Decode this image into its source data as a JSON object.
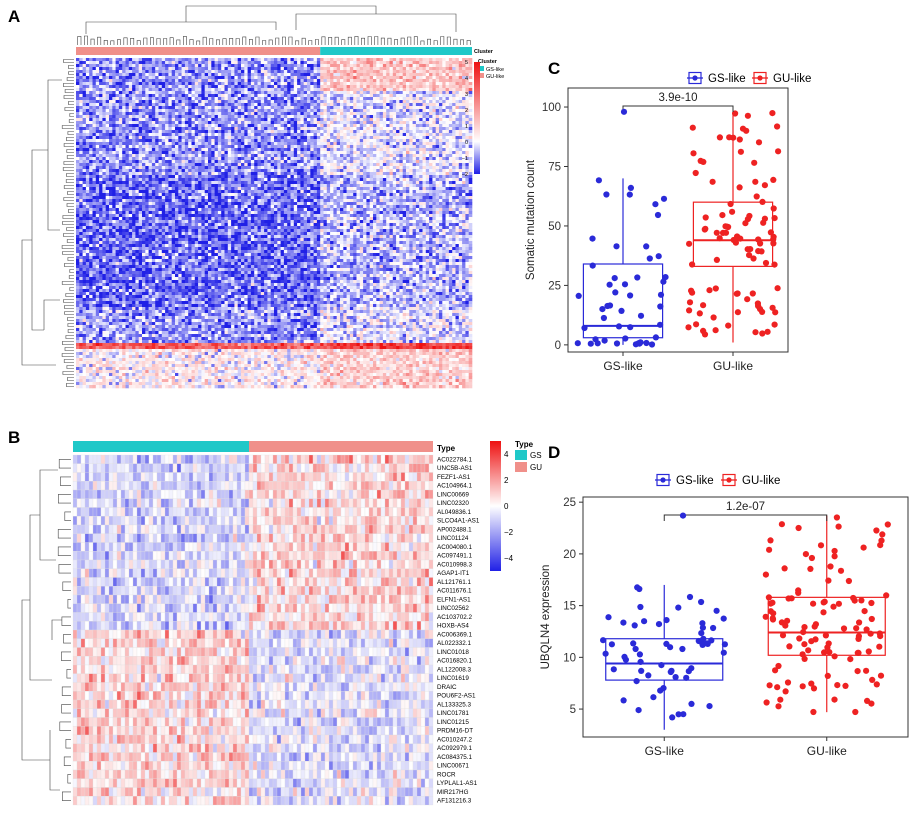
{
  "panels": {
    "A": "A",
    "B": "B",
    "C": "C",
    "D": "D"
  },
  "colors": {
    "gs": "#2a2ad8",
    "gu": "#ee2222",
    "gs_bar": "#1fc8c8",
    "gu_bar": "#f0908a",
    "heat_low": "#2020e6",
    "heat_mid": "#ffffff",
    "heat_high": "#ee1111"
  },
  "chart_data": [
    {
      "type": "heatmap",
      "panel": "A",
      "annotation_title": "Cluster",
      "legend_title": "Cluster",
      "groups": [
        "GS-like",
        "GU-like"
      ],
      "color_scale_ticks": [
        "5",
        "4",
        "3",
        "2",
        "1",
        "0",
        "−1",
        "−2"
      ],
      "color_range": [
        -2,
        5
      ]
    },
    {
      "type": "heatmap",
      "panel": "B",
      "annotation_title": "Type",
      "legend_title": "Type",
      "groups": [
        "GS",
        "GU"
      ],
      "color_scale_ticks": [
        "4",
        "2",
        "0",
        "−2",
        "−4"
      ],
      "color_range": [
        -5,
        5
      ],
      "rows": [
        "AC022784.1",
        "UNC5B-AS1",
        "FEZF1-AS1",
        "AC104964.1",
        "LINC00669",
        "LINC02320",
        "AL049836.1",
        "SLCO4A1-AS1",
        "AP002488.1",
        "LINC01124",
        "AC004080.1",
        "AC097491.1",
        "AC010998.3",
        "AGAP1-IT1",
        "AL121761.1",
        "AC011676.1",
        "ELFN1-AS1",
        "LINC02562",
        "AC103702.2",
        "HOXB-AS4",
        "AC006369.1",
        "AL022332.1",
        "LINC01018",
        "AC016820.1",
        "AL122008.3",
        "LINC01619",
        "DRAIC",
        "POU6F2-AS1",
        "AL133325.3",
        "LINC01781",
        "LINC01215",
        "PRDM16-DT",
        "AC010247.2",
        "AC092979.1",
        "AC084375.1",
        "LINC00671",
        "ROCR",
        "LYPLAL1-AS1",
        "MIR217HG",
        "AF131216.3"
      ]
    },
    {
      "type": "box",
      "panel": "C",
      "legend": [
        "GS-like",
        "GU-like"
      ],
      "categories": [
        "GS-like",
        "GU-like"
      ],
      "ylabel": "Somatic mutation count",
      "ylim": [
        -3,
        108
      ],
      "yticks": [
        0,
        25,
        50,
        75,
        100
      ],
      "pvalue": "3.9e-10",
      "boxes": [
        {
          "name": "GS-like",
          "q1": 3,
          "median": 8,
          "q3": 34,
          "whisker_low": 0,
          "whisker_high": 70
        },
        {
          "name": "GU-like",
          "q1": 33,
          "median": 44,
          "q3": 60,
          "whisker_low": 1,
          "whisker_high": 98
        }
      ]
    },
    {
      "type": "box",
      "panel": "D",
      "legend": [
        "GS-like",
        "GU-like"
      ],
      "categories": [
        "GS-like",
        "GU-like"
      ],
      "ylabel": "UBQLN4 expression",
      "ylim": [
        2.3,
        25.5
      ],
      "yticks": [
        5,
        10,
        15,
        20,
        25
      ],
      "pvalue": "1.2e-07",
      "boxes": [
        {
          "name": "GS-like",
          "q1": 7.8,
          "median": 9.4,
          "q3": 11.8,
          "whisker_low": 3.0,
          "whisker_high": 17.0
        },
        {
          "name": "GU-like",
          "q1": 10.2,
          "median": 12.4,
          "q3": 15.8,
          "whisker_low": 4.7,
          "whisker_high": 23.7
        }
      ]
    }
  ]
}
